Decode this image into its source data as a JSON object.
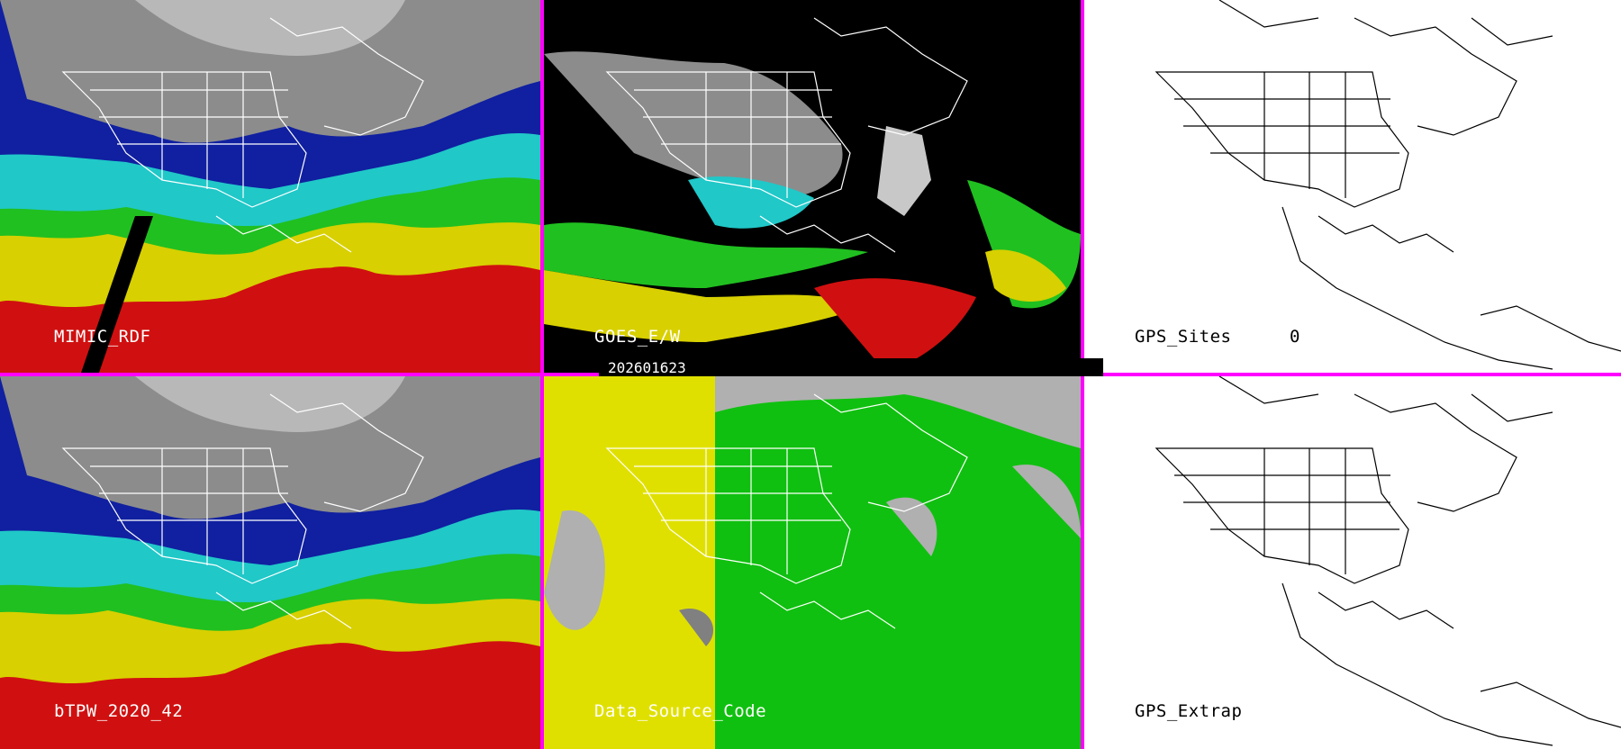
{
  "panels": [
    {
      "id": "p1",
      "label": "MIMIC_RDF",
      "style": "tpw"
    },
    {
      "id": "p2",
      "label": "GOES_E/W",
      "style": "goes"
    },
    {
      "id": "p3",
      "label": "GPS_Sites",
      "count": "0",
      "style": "outline"
    },
    {
      "id": "p4",
      "label": "bTPW_2020_42",
      "style": "tpw"
    },
    {
      "id": "p5",
      "label": "Data_Source_Code",
      "style": "source"
    },
    {
      "id": "p6",
      "label": "GPS_Extrap",
      "style": "outline"
    }
  ],
  "timestamp": "202601623",
  "colors": {
    "divider": "#ff00ff",
    "tpw_low": "#808080",
    "tpw_blue": "#1020a0",
    "tpw_cyan": "#20c8c8",
    "tpw_green": "#20c020",
    "tpw_yellow": "#d8d000",
    "tpw_red": "#d01010",
    "source_yellow": "#e0e000",
    "source_green": "#10c010",
    "source_gray": "#b0b0b0"
  }
}
